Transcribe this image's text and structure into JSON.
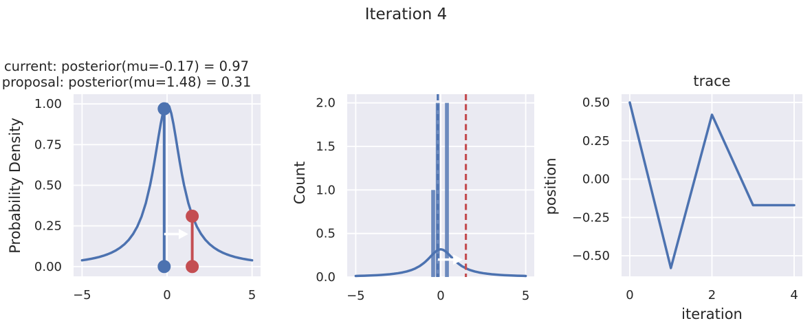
{
  "figure": {
    "suptitle": "Iteration 4"
  },
  "colors": {
    "blue": "#4c72b0",
    "red": "#c44e52",
    "axes_bg": "#eaeaf2",
    "grid": "#ffffff",
    "text": "#262626",
    "arrow": "#ffffff"
  },
  "chart_data": [
    {
      "type": "line",
      "panel": "posterior",
      "title_line1": "current: posterior(mu=-0.17) = 0.97",
      "title_line2": "proposal: posterior(mu=1.48) = 0.31",
      "ylabel": "Probability Density",
      "xlim": [
        -5.5,
        5.5
      ],
      "ylim": [
        -0.06,
        1.06
      ],
      "xticks": [
        -5,
        0,
        5
      ],
      "xtick_labels": [
        "−5",
        "0",
        "5"
      ],
      "yticks": [
        0,
        0.25,
        0.5,
        0.75,
        1
      ],
      "ytick_labels": [
        "0.00",
        "0.25",
        "0.50",
        "0.75",
        "1.00"
      ],
      "current": {
        "mu": -0.17,
        "posterior": 0.97
      },
      "proposal": {
        "mu": 1.48,
        "posterior": 0.31
      },
      "curve": {
        "name": "posterior-density-curve",
        "color": "#4c72b0",
        "x": [
          -5,
          -4.75,
          -4.5,
          -4.25,
          -4,
          -3.75,
          -3.5,
          -3.25,
          -3,
          -2.75,
          -2.5,
          -2.25,
          -2,
          -1.75,
          -1.5,
          -1.25,
          -1,
          -0.875,
          -0.75,
          -0.625,
          -0.5,
          -0.375,
          -0.25,
          -0.125,
          0,
          0.125,
          0.25,
          0.375,
          0.5,
          0.625,
          0.75,
          0.875,
          1,
          1.25,
          1.5,
          1.75,
          2,
          2.25,
          2.5,
          2.75,
          3,
          3.25,
          3.5,
          3.75,
          4,
          4.25,
          4.5,
          4.75,
          5
        ],
        "y": [
          0.0385,
          0.0424,
          0.0471,
          0.0525,
          0.0588,
          0.0664,
          0.0755,
          0.0865,
          0.1,
          0.1168,
          0.1379,
          0.1649,
          0.2,
          0.2462,
          0.3077,
          0.3902,
          0.5,
          0.5664,
          0.64,
          0.7191,
          0.8,
          0.8767,
          0.9412,
          0.9846,
          1.0,
          0.9846,
          0.9412,
          0.8767,
          0.8,
          0.7191,
          0.64,
          0.5664,
          0.5,
          0.3902,
          0.3077,
          0.2462,
          0.2,
          0.1649,
          0.1379,
          0.1168,
          0.1,
          0.0865,
          0.0755,
          0.0664,
          0.0588,
          0.0525,
          0.0471,
          0.0424,
          0.0385
        ]
      },
      "stems": [
        {
          "name": "current-sample",
          "x": -0.17,
          "y": 0.97,
          "color": "#4c72b0"
        },
        {
          "name": "proposal-sample",
          "x": 1.48,
          "y": 0.31,
          "color": "#c44e52"
        }
      ],
      "arrow": {
        "from_x": -0.17,
        "to_x": 1.25,
        "y": 0.2,
        "color": "#ffffff"
      }
    },
    {
      "type": "histogram",
      "panel": "samples-histogram",
      "ylabel": "Count",
      "xlim": [
        -5.5,
        5.5
      ],
      "ylim": [
        0,
        2.1
      ],
      "xticks": [
        -5,
        0,
        5
      ],
      "xtick_labels": [
        "−5",
        "0",
        "5"
      ],
      "yticks": [
        0,
        0.5,
        1,
        1.5,
        2
      ],
      "ytick_labels": [
        "0.0",
        "0.5",
        "1.0",
        "1.5",
        "2.0"
      ],
      "bars": {
        "bin_edges": [
          -0.58,
          -0.31,
          -0.04,
          0.23,
          0.5
        ],
        "counts": [
          1,
          2,
          0,
          2
        ],
        "color": "#4c72b0"
      },
      "vlines": [
        {
          "name": "current-position-vline",
          "x": -0.17,
          "color": "#4c72b0",
          "style": "dashed"
        },
        {
          "name": "proposal-position-vline",
          "x": 1.48,
          "color": "#c44e52",
          "style": "dashed"
        }
      ],
      "curve": {
        "name": "target-pdf-curve",
        "color": "#4c72b0",
        "x": [
          -5,
          -4.75,
          -4.5,
          -4.25,
          -4,
          -3.75,
          -3.5,
          -3.25,
          -3,
          -2.75,
          -2.5,
          -2.25,
          -2,
          -1.75,
          -1.5,
          -1.25,
          -1,
          -0.875,
          -0.75,
          -0.625,
          -0.5,
          -0.375,
          -0.25,
          -0.125,
          0,
          0.125,
          0.25,
          0.375,
          0.5,
          0.625,
          0.75,
          0.875,
          1,
          1.25,
          1.5,
          1.75,
          2,
          2.25,
          2.5,
          2.75,
          3,
          3.25,
          3.5,
          3.75,
          4,
          4.25,
          4.5,
          4.75,
          5
        ],
        "y": [
          0.0122,
          0.0135,
          0.015,
          0.0167,
          0.0187,
          0.0211,
          0.024,
          0.0275,
          0.0318,
          0.0372,
          0.0439,
          0.0525,
          0.0637,
          0.0784,
          0.0979,
          0.1242,
          0.1592,
          0.1803,
          0.2037,
          0.2289,
          0.2546,
          0.2791,
          0.2996,
          0.3134,
          0.3183,
          0.3134,
          0.2996,
          0.2791,
          0.2546,
          0.2289,
          0.2037,
          0.1803,
          0.1592,
          0.1242,
          0.0979,
          0.0784,
          0.0637,
          0.0525,
          0.0439,
          0.0372,
          0.0318,
          0.0275,
          0.024,
          0.0211,
          0.0187,
          0.0167,
          0.015,
          0.0135,
          0.0122
        ]
      },
      "arrow": {
        "from_x": -0.17,
        "to_x": 1.3,
        "y": 0.2,
        "color": "#ffffff"
      }
    },
    {
      "type": "line",
      "panel": "trace",
      "title": "trace",
      "ylabel": "position",
      "xlabel": "iteration",
      "xlim": [
        -0.2,
        4.2
      ],
      "ylim": [
        -0.634,
        0.554
      ],
      "xticks": [
        0,
        2,
        4
      ],
      "xtick_labels": [
        "0",
        "2",
        "4"
      ],
      "yticks": [
        0.5,
        0.25,
        0,
        -0.25,
        -0.5
      ],
      "ytick_labels": [
        "0.50",
        "0.25",
        "0.00",
        "−0.25",
        "−0.50"
      ],
      "series": [
        {
          "name": "position-trace",
          "color": "#4c72b0",
          "x": [
            0,
            1,
            2,
            3,
            4
          ],
          "y": [
            0.5,
            -0.58,
            0.42,
            -0.17,
            -0.17
          ]
        }
      ]
    }
  ]
}
